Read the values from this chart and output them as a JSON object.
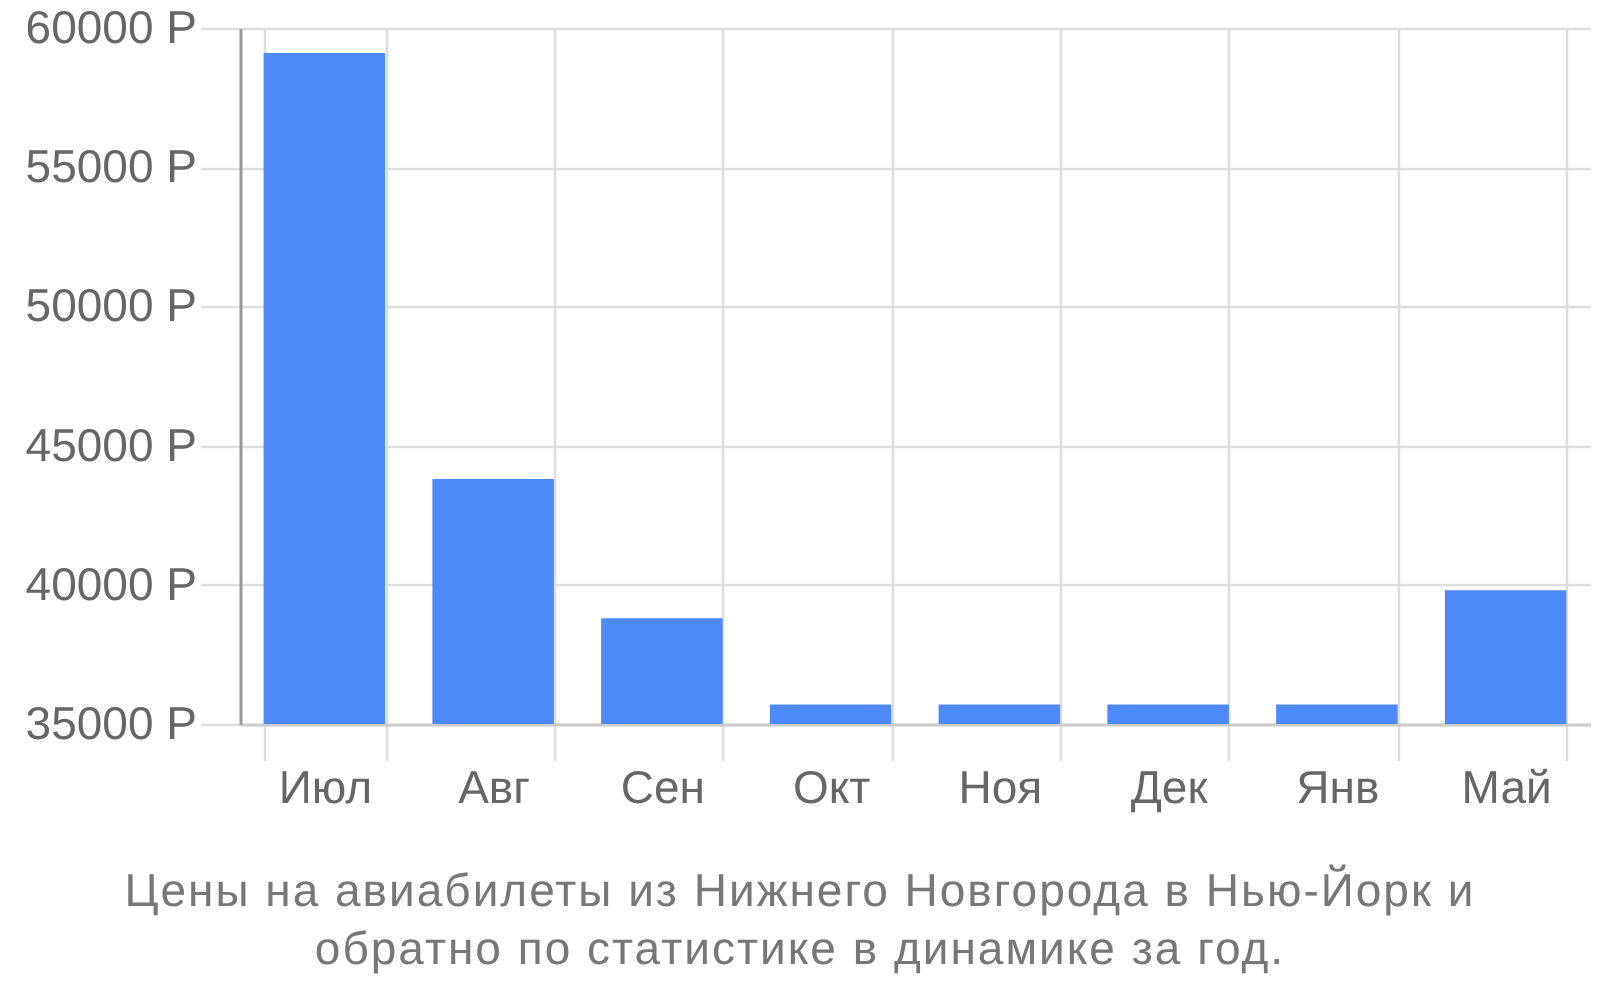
{
  "chart_data": {
    "type": "bar",
    "title": "Цены на авиабилеты из Нижнего Новгорода в Нью-Йорк и обратно по статистике в динамике за год.",
    "categories": [
      "Июл",
      "Авг",
      "Сен",
      "Окт",
      "Ноя",
      "Дек",
      "Янв",
      "Май"
    ],
    "values": [
      59100,
      43800,
      38800,
      35700,
      35700,
      35700,
      35700,
      39800
    ],
    "color": "#4e89f9",
    "ylim": [
      35000,
      60000
    ],
    "yticks": [
      {
        "value": 35000,
        "label": "35000 Р"
      },
      {
        "value": 40000,
        "label": "40000 Р"
      },
      {
        "value": 45000,
        "label": "45000 Р"
      },
      {
        "value": 50000,
        "label": "50000 Р"
      },
      {
        "value": 55000,
        "label": "55000 Р"
      },
      {
        "value": 60000,
        "label": "60000 Р"
      }
    ],
    "grid": true
  }
}
